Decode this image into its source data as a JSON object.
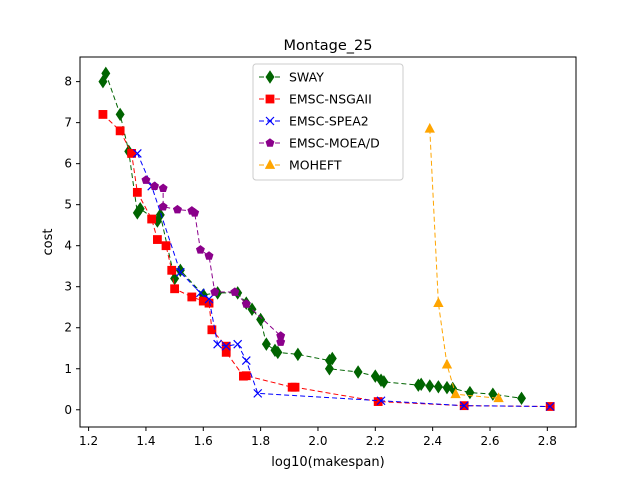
{
  "chart_data": {
    "type": "scatter",
    "title": "Montage_25",
    "xlabel": "log10(makespan)",
    "ylabel": "cost",
    "xlim": [
      1.17,
      2.9
    ],
    "ylim": [
      -0.42,
      8.6
    ],
    "xticks": [
      "1.2",
      "1.4",
      "1.6",
      "1.8",
      "2.0",
      "2.2",
      "2.4",
      "2.6",
      "2.8"
    ],
    "yticks": [
      "0",
      "1",
      "2",
      "3",
      "4",
      "5",
      "6",
      "7",
      "8"
    ],
    "grid": false,
    "legend": "top-center",
    "series": [
      {
        "name": "SWAY",
        "color": "#006400",
        "marker": "diamond",
        "points": [
          [
            1.25,
            8.0
          ],
          [
            1.26,
            8.2
          ],
          [
            1.31,
            7.2
          ],
          [
            1.34,
            6.3
          ],
          [
            1.37,
            4.8
          ],
          [
            1.38,
            4.9
          ],
          [
            1.44,
            4.6
          ],
          [
            1.45,
            4.75
          ],
          [
            1.5,
            3.2
          ],
          [
            1.52,
            3.4
          ],
          [
            1.6,
            2.8
          ],
          [
            1.65,
            2.85
          ],
          [
            1.72,
            2.85
          ],
          [
            1.75,
            2.6
          ],
          [
            1.77,
            2.45
          ],
          [
            1.8,
            2.2
          ],
          [
            1.82,
            1.6
          ],
          [
            1.85,
            1.45
          ],
          [
            1.86,
            1.4
          ],
          [
            1.93,
            1.35
          ],
          [
            2.04,
            1.2
          ],
          [
            2.05,
            1.25
          ],
          [
            2.04,
            1.0
          ],
          [
            2.14,
            0.92
          ],
          [
            2.2,
            0.82
          ],
          [
            2.22,
            0.72
          ],
          [
            2.23,
            0.68
          ],
          [
            2.35,
            0.6
          ],
          [
            2.36,
            0.62
          ],
          [
            2.39,
            0.58
          ],
          [
            2.42,
            0.56
          ],
          [
            2.45,
            0.54
          ],
          [
            2.47,
            0.52
          ],
          [
            2.53,
            0.42
          ],
          [
            2.61,
            0.38
          ],
          [
            2.71,
            0.28
          ]
        ]
      },
      {
        "name": "EMSC-NSGAII",
        "color": "#ff0000",
        "marker": "square",
        "points": [
          [
            1.25,
            7.2
          ],
          [
            1.31,
            6.8
          ],
          [
            1.35,
            6.25
          ],
          [
            1.37,
            5.3
          ],
          [
            1.42,
            4.65
          ],
          [
            1.44,
            4.15
          ],
          [
            1.47,
            4.0
          ],
          [
            1.49,
            3.4
          ],
          [
            1.5,
            2.95
          ],
          [
            1.56,
            2.75
          ],
          [
            1.6,
            2.65
          ],
          [
            1.62,
            2.6
          ],
          [
            1.63,
            1.95
          ],
          [
            1.68,
            1.55
          ],
          [
            1.68,
            1.4
          ],
          [
            1.74,
            0.82
          ],
          [
            1.75,
            0.83
          ],
          [
            1.91,
            0.55
          ],
          [
            1.92,
            0.55
          ],
          [
            2.21,
            0.2
          ],
          [
            2.51,
            0.1
          ],
          [
            2.81,
            0.08
          ]
        ]
      },
      {
        "name": "EMSC-SPEA2",
        "color": "#0000ff",
        "marker": "x",
        "points": [
          [
            1.37,
            6.25
          ],
          [
            1.42,
            5.45
          ],
          [
            1.52,
            3.35
          ],
          [
            1.59,
            2.85
          ],
          [
            1.62,
            2.7
          ],
          [
            1.65,
            1.6
          ],
          [
            1.68,
            1.55
          ],
          [
            1.72,
            1.6
          ],
          [
            1.75,
            1.2
          ],
          [
            1.79,
            0.4
          ],
          [
            2.22,
            0.22
          ],
          [
            2.51,
            0.1
          ],
          [
            2.81,
            0.08
          ]
        ]
      },
      {
        "name": "EMSC-MOEA/D",
        "color": "#8b008b",
        "marker": "pentagon",
        "points": [
          [
            1.4,
            5.6
          ],
          [
            1.43,
            5.45
          ],
          [
            1.46,
            5.4
          ],
          [
            1.46,
            4.95
          ],
          [
            1.51,
            4.88
          ],
          [
            1.56,
            4.85
          ],
          [
            1.57,
            4.8
          ],
          [
            1.59,
            3.9
          ],
          [
            1.62,
            3.75
          ],
          [
            1.64,
            2.87
          ],
          [
            1.71,
            2.87
          ],
          [
            1.75,
            2.58
          ],
          [
            1.87,
            1.8
          ],
          [
            1.87,
            1.65
          ]
        ]
      },
      {
        "name": "MOHEFT",
        "color": "#ffa500",
        "marker": "triangle",
        "points": [
          [
            2.39,
            6.85
          ],
          [
            2.42,
            2.6
          ],
          [
            2.45,
            1.1
          ],
          [
            2.48,
            0.38
          ],
          [
            2.63,
            0.28
          ]
        ]
      }
    ]
  }
}
